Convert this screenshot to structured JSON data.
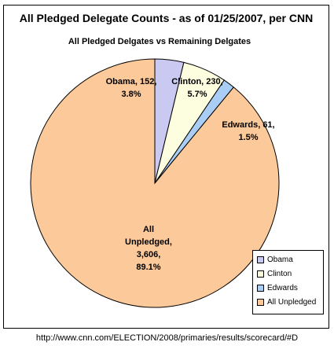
{
  "chart_data": {
    "type": "pie",
    "title": "All Pledged Delegate Counts -  as of 01/25/2007, per CNN",
    "subtitle": "All Pledged Delgates vs Remaining Delgates",
    "slices": [
      {
        "name": "Obama",
        "value": 152,
        "percent": "3.8%",
        "color": "#c9c9f2",
        "label_lines": [
          "Obama, 152,",
          "3.8%"
        ]
      },
      {
        "name": "Clinton",
        "value": 230,
        "percent": "5.7%",
        "color": "#fdfde0",
        "label_lines": [
          "Clinton, 230,",
          "5.7%"
        ]
      },
      {
        "name": "Edwards",
        "value": 61,
        "percent": "1.5%",
        "color": "#a9cdf4",
        "label_lines": [
          "Edwards, 61,",
          "1.5%"
        ]
      },
      {
        "name": "All Unpledged",
        "value": 3606,
        "percent": "89.1%",
        "color": "#fcc99a",
        "label_lines": [
          "All",
          "Unpledged,",
          "3,606,",
          "89.1%"
        ]
      }
    ],
    "legend": {
      "position": "bottom-right",
      "entries": [
        "Obama",
        "Clinton",
        "Edwards",
        "All Unpledged"
      ]
    }
  },
  "source_url": "http://www.cnn.com/ELECTION/2008/primaries/results/scorecard/#D"
}
